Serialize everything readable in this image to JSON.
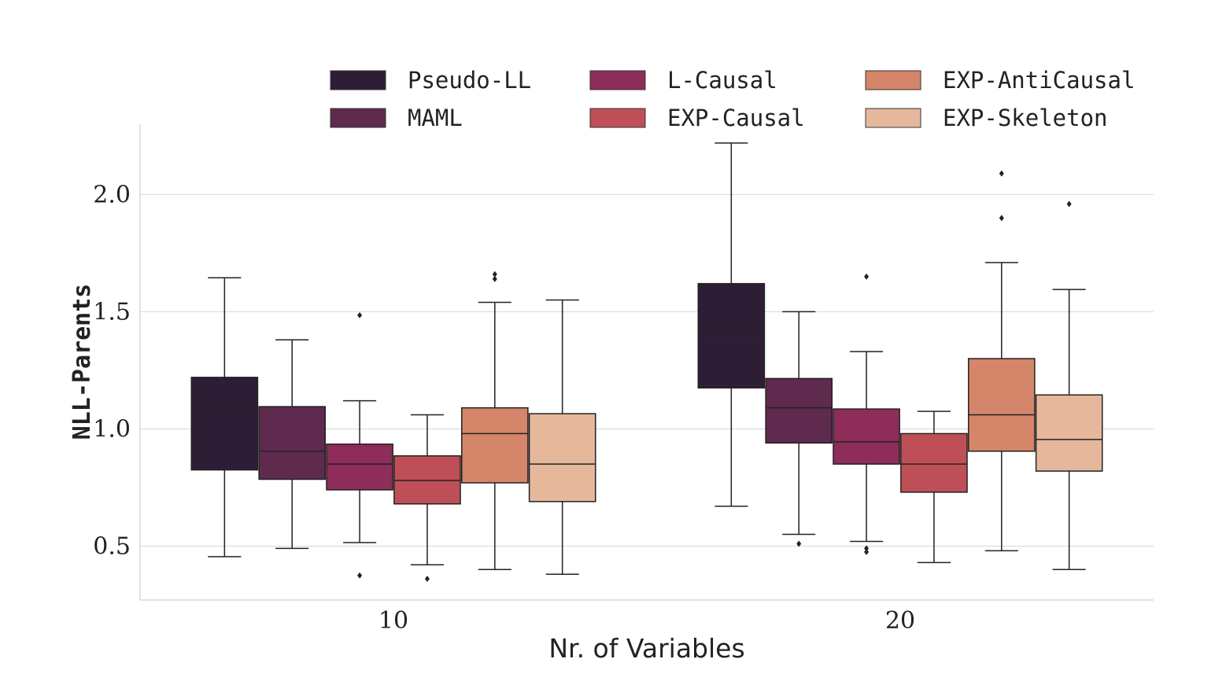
{
  "chart_data": {
    "type": "box",
    "xlabel": "Nr. of Variables",
    "ylabel": "NLL-Parents",
    "ylim": [
      0.27,
      2.3
    ],
    "yticks": [
      0.5,
      1.0,
      1.5,
      2.0
    ],
    "ytick_labels": [
      "0.5",
      "1.0",
      "1.5",
      "2.0"
    ],
    "grid": "horizontal",
    "legend_position": "top",
    "categories": [
      "10",
      "20"
    ],
    "series": [
      {
        "name": "Pseudo-LL",
        "color": "#2e1e35",
        "boxes": [
          {
            "whisker_low": 0.455,
            "q1": 0.825,
            "median": 1.075,
            "q3": 1.22,
            "whisker_high": 1.645,
            "outliers": []
          },
          {
            "whisker_low": 0.67,
            "q1": 1.175,
            "median": 1.4,
            "q3": 1.62,
            "whisker_high": 2.22,
            "outliers": []
          }
        ]
      },
      {
        "name": "MAML",
        "color": "#5e2a4e",
        "boxes": [
          {
            "whisker_low": 0.49,
            "q1": 0.785,
            "median": 0.905,
            "q3": 1.095,
            "whisker_high": 1.38,
            "outliers": []
          },
          {
            "whisker_low": 0.55,
            "q1": 0.94,
            "median": 1.09,
            "q3": 1.215,
            "whisker_high": 1.5,
            "outliers": [
              0.51
            ]
          }
        ]
      },
      {
        "name": "L-Causal",
        "color": "#8e2d59",
        "boxes": [
          {
            "whisker_low": 0.515,
            "q1": 0.74,
            "median": 0.85,
            "q3": 0.935,
            "whisker_high": 1.12,
            "outliers": [
              1.485,
              0.375
            ]
          },
          {
            "whisker_low": 0.52,
            "q1": 0.85,
            "median": 0.945,
            "q3": 1.085,
            "whisker_high": 1.33,
            "outliers": [
              1.65,
              0.49,
              0.475
            ]
          }
        ]
      },
      {
        "name": "EXP-Causal",
        "color": "#bf4f56",
        "boxes": [
          {
            "whisker_low": 0.42,
            "q1": 0.68,
            "median": 0.78,
            "q3": 0.885,
            "whisker_high": 1.06,
            "outliers": [
              0.36
            ]
          },
          {
            "whisker_low": 0.43,
            "q1": 0.73,
            "median": 0.85,
            "q3": 0.98,
            "whisker_high": 1.075,
            "outliers": []
          }
        ]
      },
      {
        "name": "EXP-AntiCausal",
        "color": "#d4856a",
        "boxes": [
          {
            "whisker_low": 0.4,
            "q1": 0.77,
            "median": 0.98,
            "q3": 1.09,
            "whisker_high": 1.54,
            "outliers": [
              1.66,
              1.64
            ]
          },
          {
            "whisker_low": 0.48,
            "q1": 0.905,
            "median": 1.06,
            "q3": 1.3,
            "whisker_high": 1.71,
            "outliers": [
              2.09,
              1.9
            ]
          }
        ]
      },
      {
        "name": "EXP-Skeleton",
        "color": "#e5b89c",
        "boxes": [
          {
            "whisker_low": 0.38,
            "q1": 0.69,
            "median": 0.85,
            "q3": 1.065,
            "whisker_high": 1.55,
            "outliers": []
          },
          {
            "whisker_low": 0.4,
            "q1": 0.82,
            "median": 0.955,
            "q3": 1.145,
            "whisker_high": 1.595,
            "outliers": [
              1.96
            ]
          }
        ]
      }
    ]
  }
}
